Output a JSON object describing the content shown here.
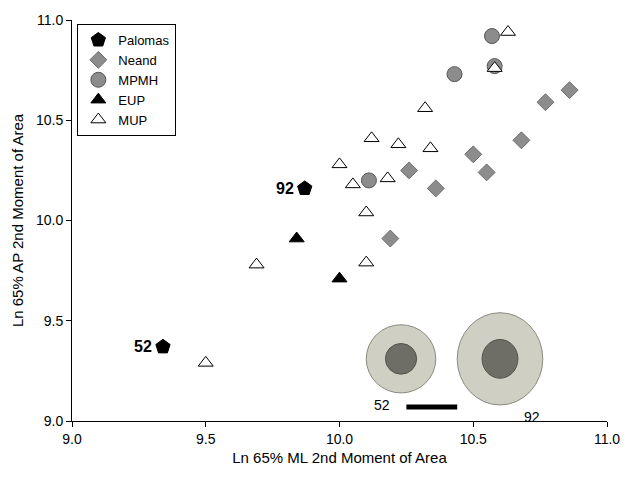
{
  "chart_data": {
    "type": "scatter",
    "x_label": "Ln 65% ML 2nd Moment of Area",
    "y_label": "Ln 65% AP 2nd Moment of Area",
    "xlim": [
      9.0,
      11.0
    ],
    "ylim": [
      9.0,
      11.0
    ],
    "xticks": [
      {
        "value": 9.0,
        "label": "9.0"
      },
      9.5,
      {
        "value": 10.0,
        "label": "10.0"
      },
      10.5,
      {
        "value": 11.0,
        "label": "11.0"
      }
    ],
    "yticks": [
      {
        "value": 9.0,
        "label": "9.0"
      },
      9.5,
      {
        "value": 10.0,
        "label": "10.0"
      },
      10.5,
      {
        "value": 11.0,
        "label": "11.0"
      }
    ],
    "grid": false,
    "legend": "upper left",
    "series": [
      {
        "name": "Palomas",
        "color": "#000000",
        "marker": "pentagon",
        "x": [
          9.87,
          9.34
        ],
        "y": [
          10.16,
          9.37
        ]
      },
      {
        "name": "Neand",
        "color": "#8c8c8c",
        "marker": "diamond",
        "x": [
          10.86,
          10.77,
          10.68,
          10.5,
          10.55,
          10.26,
          10.36,
          10.19
        ],
        "y": [
          10.65,
          10.59,
          10.4,
          10.33,
          10.24,
          10.25,
          10.16,
          9.91
        ]
      },
      {
        "name": "MPMH",
        "color": "#8c8c8c",
        "marker": "circle",
        "x": [
          10.57,
          10.43,
          10.58,
          10.11
        ],
        "y": [
          10.92,
          10.73,
          10.77,
          10.2
        ]
      },
      {
        "name": "EUP",
        "color": "#000000",
        "marker": "triangle-up",
        "x": [
          9.84,
          10.0
        ],
        "y": [
          9.91,
          9.71
        ]
      },
      {
        "name": "MUP",
        "color": "#ffffff",
        "marker": "triangle-up-open",
        "x": [
          10.63,
          10.58,
          10.32,
          10.12,
          10.22,
          10.0,
          10.34,
          10.05,
          10.18,
          10.1,
          9.69,
          10.1,
          9.5
        ],
        "y": [
          10.94,
          10.76,
          10.56,
          10.41,
          10.38,
          10.28,
          10.36,
          10.18,
          10.21,
          10.04,
          9.78,
          9.79,
          9.29
        ]
      }
    ],
    "annotations": [
      {
        "text": "92",
        "x": 9.87,
        "y": 10.16
      },
      {
        "text": "52",
        "x": 9.34,
        "y": 9.37
      }
    ],
    "inset_labels": [
      "52",
      "92"
    ]
  }
}
